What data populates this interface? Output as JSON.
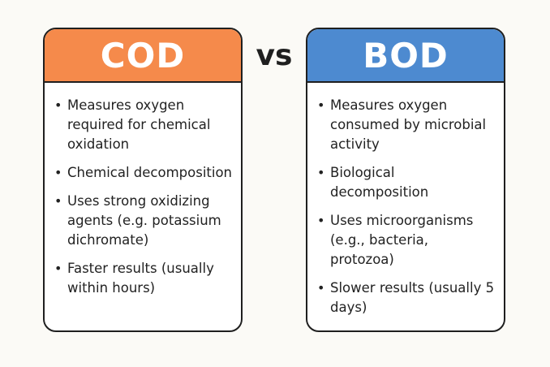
{
  "comparison": {
    "separator": "vs",
    "cod": {
      "title": "COD",
      "color": "#f58a4b",
      "items": [
        "Measures oxygen required for chemical oxidation",
        "Chemical decomposition",
        "Uses strong oxidizing agents (e.g. potassium dichromate)",
        "Faster results (usually within hours)"
      ]
    },
    "bod": {
      "title": "BOD",
      "color": "#4d8ad0",
      "items": [
        "Measures oxygen consumed by microbial activity",
        "Biological decomposition",
        "Uses microorganisms (e.g., bacteria, protozoa)",
        "Slower results (usually 5 days)"
      ]
    },
    "bullet_char": "•"
  }
}
